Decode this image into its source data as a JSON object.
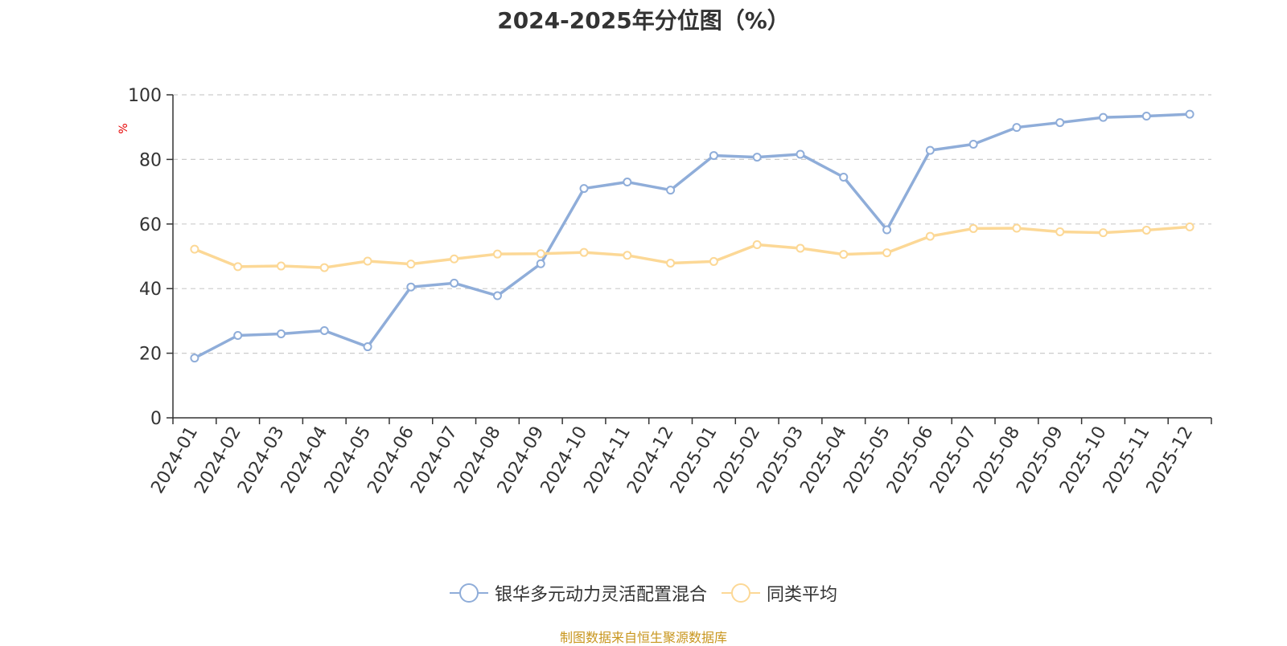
{
  "chart_data": {
    "type": "line",
    "title": "2024-2025年分位图（%）",
    "ylabel": "%",
    "xlabel": "",
    "ylim": [
      0,
      100
    ],
    "yticks": [
      0,
      20,
      40,
      60,
      80,
      100
    ],
    "grid": true,
    "legend_position": "bottom",
    "categories": [
      "2024-01",
      "2024-02",
      "2024-03",
      "2024-04",
      "2024-05",
      "2024-06",
      "2024-07",
      "2024-08",
      "2024-09",
      "2024-10",
      "2024-11",
      "2024-12",
      "2025-01",
      "2025-02",
      "2025-03",
      "2025-04",
      "2025-05",
      "2025-06",
      "2025-07",
      "2025-08",
      "2025-09",
      "2025-10",
      "2025-11",
      "2025-12"
    ],
    "series": [
      {
        "name": "银华多元动力灵活配置混合",
        "color": "#8fadd9",
        "values": [
          18.5,
          25.5,
          26.0,
          27.0,
          22.0,
          40.5,
          41.7,
          37.8,
          47.7,
          71.0,
          73.0,
          70.5,
          81.2,
          80.7,
          81.6,
          74.5,
          58.2,
          82.8,
          84.7,
          89.9,
          91.4,
          93.0,
          93.4,
          94.0
        ]
      },
      {
        "name": "同类平均",
        "color": "#fcd896",
        "values": [
          52.2,
          46.8,
          47.0,
          46.5,
          48.5,
          47.6,
          49.2,
          50.7,
          50.8,
          51.2,
          50.3,
          47.9,
          48.4,
          53.6,
          52.5,
          50.6,
          51.1,
          56.2,
          58.6,
          58.7,
          57.6,
          57.3,
          58.1,
          59.1
        ]
      }
    ]
  },
  "source_text": "制图数据来自恒生聚源数据库",
  "colors": {
    "axis": "#333333",
    "grid": "#cccccc",
    "ylabel": "#e60000",
    "source": "#c8961e"
  }
}
